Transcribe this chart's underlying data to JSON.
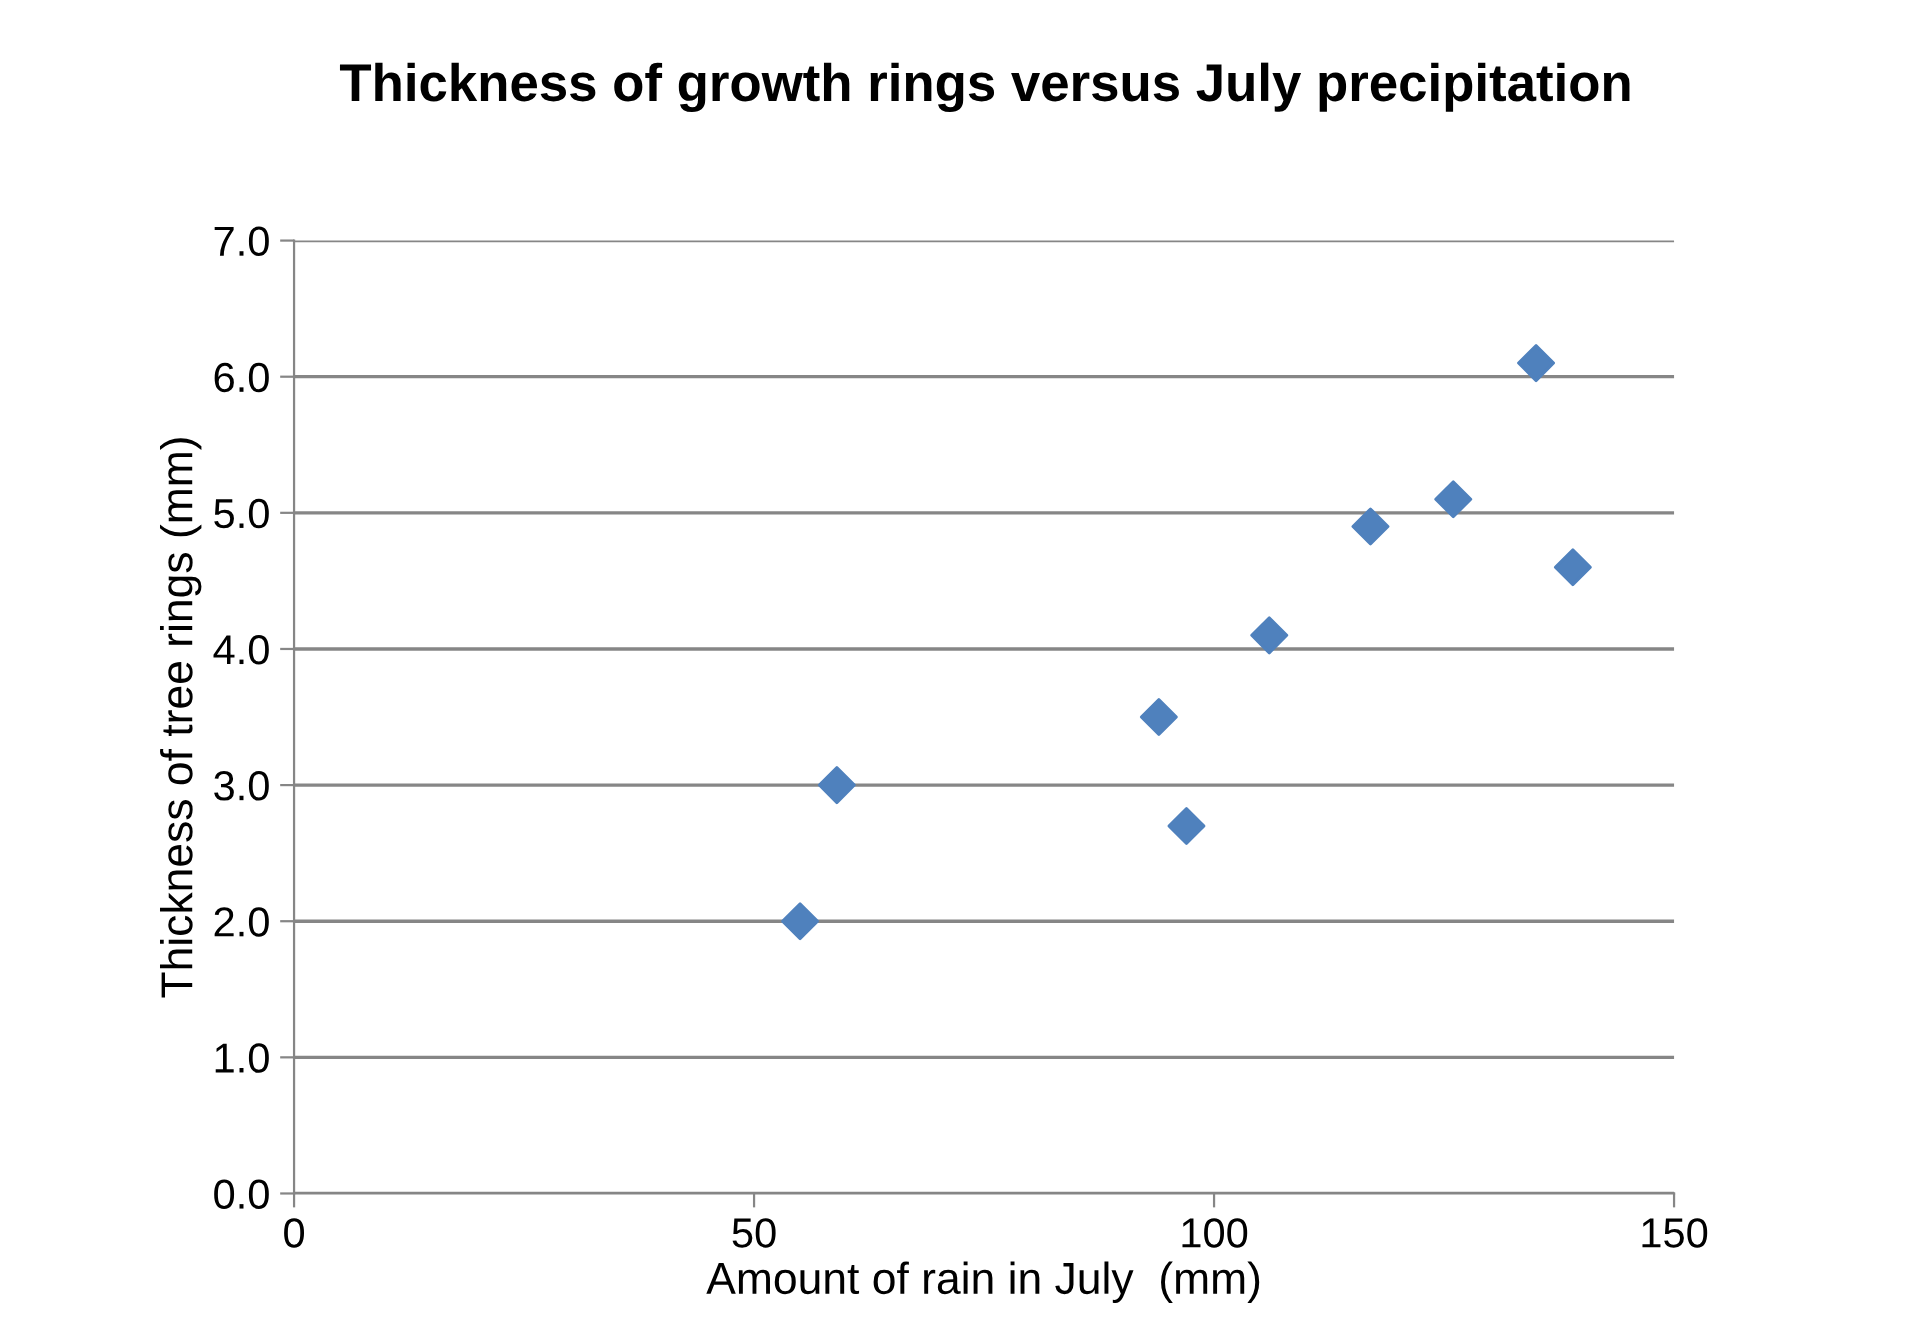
{
  "chart_data": {
    "type": "scatter",
    "title": "Thickness of growth rings versus July precipitation",
    "xlabel": "Amount of rain in July  (mm)",
    "ylabel": "Thickness of tree rings (mm)",
    "x": [
      55,
      59,
      94,
      97,
      106,
      117,
      126,
      135,
      139
    ],
    "values": [
      2.0,
      3.0,
      3.5,
      2.7,
      4.1,
      4.9,
      5.1,
      6.1,
      4.6
    ],
    "color": "#4f81bd",
    "marker": "diamond",
    "grid": "y",
    "legend": false,
    "xlim": [
      0,
      150
    ],
    "xticks": [
      0,
      50,
      100,
      150
    ],
    "ylim": [
      0,
      7
    ],
    "yticks": [
      {
        "value": 0,
        "label": "0.0"
      },
      {
        "value": 1,
        "label": "1.0"
      },
      {
        "value": 2,
        "label": "2.0"
      },
      {
        "value": 3,
        "label": "3.0"
      },
      {
        "value": 4,
        "label": "4.0"
      },
      {
        "value": 5,
        "label": "5.0"
      },
      {
        "value": 6,
        "label": "6.0"
      },
      {
        "value": 7,
        "label": "7.0"
      }
    ]
  }
}
